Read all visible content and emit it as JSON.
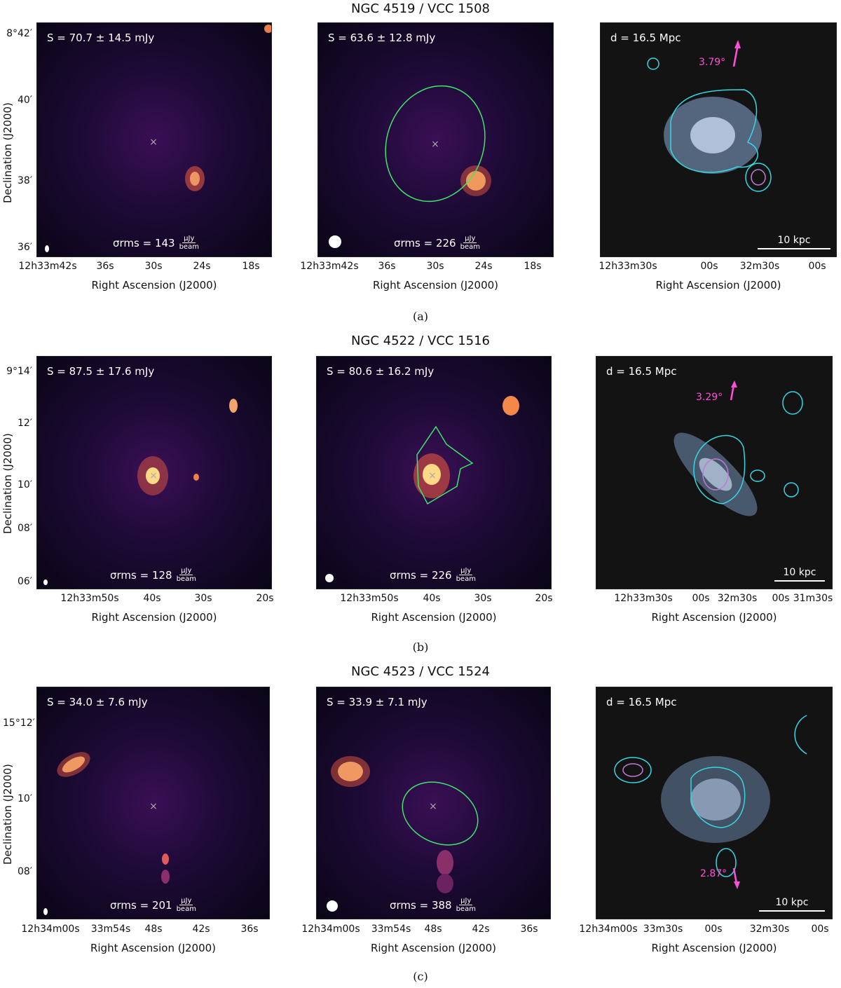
{
  "rows": [
    {
      "title": "NGC 4519 / VCC 1508",
      "caption": "(a)",
      "p1": {
        "flux": "S = 70.7 ± 14.5 mJy",
        "rms": "σrms = 143",
        "yticks": [
          "8°42′",
          "40′",
          "38′",
          "36′"
        ],
        "xticks": [
          "12h33m42s",
          "36s",
          "30s",
          "24s",
          "18s"
        ]
      },
      "p2": {
        "flux": "S = 63.6 ± 12.8 mJy",
        "rms": "σrms = 226",
        "xticks": [
          "12h33m42s",
          "36s",
          "30s",
          "24s",
          "18s"
        ]
      },
      "p3": {
        "dist": "d = 16.5 Mpc",
        "pa": "3.79°",
        "scale": "10 kpc",
        "xticks": [
          "12h33m30s",
          "00s",
          "32m30s",
          "00s"
        ]
      }
    },
    {
      "title": "NGC 4522 / VCC 1516",
      "caption": "(b)",
      "p1": {
        "flux": "S = 87.5 ± 17.6 mJy",
        "rms": "σrms = 128",
        "yticks": [
          "9°14′",
          "12′",
          "10′",
          "08′",
          "06′"
        ],
        "xticks": [
          "12h33m50s",
          "40s",
          "30s",
          "20s"
        ]
      },
      "p2": {
        "flux": "S = 80.6 ± 16.2 mJy",
        "rms": "σrms = 226",
        "xticks": [
          "12h33m50s",
          "40s",
          "30s",
          "20s"
        ]
      },
      "p3": {
        "dist": "d = 16.5 Mpc",
        "pa": "3.29°",
        "scale": "10 kpc",
        "xticks": [
          "12h33m30s",
          "00s",
          "32m30s",
          "00s",
          "31m30s"
        ]
      }
    },
    {
      "title": "NGC 4523 / VCC 1524",
      "caption": "(c)",
      "p1": {
        "flux": "S = 34.0 ± 7.6 mJy",
        "rms": "σrms = 201",
        "yticks": [
          "15°12′",
          "10′",
          "08′"
        ],
        "xticks": [
          "12h34m00s",
          "33m54s",
          "48s",
          "42s",
          "36s"
        ]
      },
      "p2": {
        "flux": "S = 33.9 ± 7.1 mJy",
        "rms": "σrms = 388",
        "xticks": [
          "12h34m00s",
          "33m54s",
          "48s",
          "42s",
          "36s"
        ]
      },
      "p3": {
        "dist": "d = 16.5 Mpc",
        "pa": "2.87°",
        "scale": "10 kpc",
        "xticks": [
          "12h34m00s",
          "33m30s",
          "00s",
          "32m30s",
          "00s"
        ]
      }
    }
  ],
  "unit_num": "μJy",
  "unit_den": "beam",
  "ylabel": "Declination (J2000)",
  "xlabel": "Right Ascension (J2000)"
}
